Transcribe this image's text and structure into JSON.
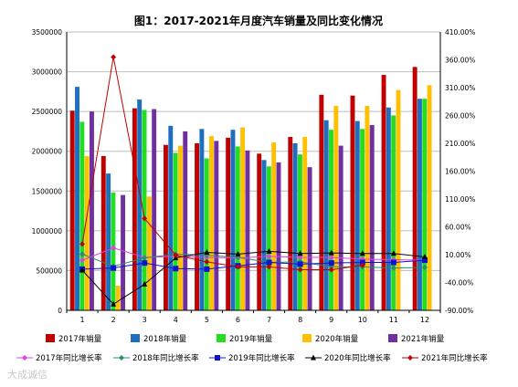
{
  "chart_data": {
    "type": "bar+line",
    "title": "图1：2017-2021年月度汽车销量及同比变化情况",
    "categories": [
      "1",
      "2",
      "3",
      "4",
      "5",
      "6",
      "7",
      "8",
      "9",
      "10",
      "11",
      "12"
    ],
    "left_axis": {
      "ylim": [
        0,
        3500000
      ],
      "ticks": [
        0,
        500000,
        1000000,
        1500000,
        2000000,
        2500000,
        3000000,
        3500000
      ]
    },
    "right_axis": {
      "ylim": [
        -90,
        410
      ],
      "ticks": [
        "-90.00%",
        "-40.00%",
        "10.00%",
        "60.00%",
        "110.00%",
        "160.00%",
        "210.00%",
        "260.00%",
        "310.00%",
        "360.00%",
        "410.00%"
      ]
    },
    "grid": true,
    "legend_position": "bottom",
    "bar_series": [
      {
        "name": "2017年销量",
        "color": "#c00000",
        "values": [
          2510000,
          1940000,
          2540000,
          2080000,
          2100000,
          2170000,
          1970000,
          2180000,
          2710000,
          2700000,
          2960000,
          3060000
        ]
      },
      {
        "name": "2018年销量",
        "color": "#1f6fbf",
        "values": [
          2810000,
          1720000,
          2650000,
          2320000,
          2280000,
          2270000,
          1890000,
          2100000,
          2390000,
          2380000,
          2550000,
          2660000
        ]
      },
      {
        "name": "2019年销量",
        "color": "#22dd22",
        "values": [
          2370000,
          1480000,
          2520000,
          1980000,
          1910000,
          2060000,
          1810000,
          1960000,
          2270000,
          2280000,
          2450000,
          2660000
        ]
      },
      {
        "name": "2020年销量",
        "color": "#ffc000",
        "values": [
          1940000,
          310000,
          1430000,
          2070000,
          2190000,
          2300000,
          2110000,
          2180000,
          2570000,
          2570000,
          2770000,
          2830000
        ]
      },
      {
        "name": "2021年销量",
        "color": "#7030a0",
        "values": [
          2500000,
          1450000,
          2530000,
          2250000,
          2130000,
          2010000,
          1860000,
          1800000,
          2070000,
          2330000,
          null,
          null
        ]
      }
    ],
    "line_series": [
      {
        "name": "2017年同比增长率",
        "color": "#e040e0",
        "marker": "diamond",
        "values": [
          0,
          22,
          5,
          7,
          5,
          4,
          7,
          5,
          5,
          2,
          1,
          0
        ]
      },
      {
        "name": "2018年同比增长率",
        "color": "#2e8b6e",
        "marker": "diamond",
        "values": [
          11,
          -11,
          4,
          11,
          9,
          5,
          -4,
          -3,
          -12,
          -12,
          -14,
          -13
        ]
      },
      {
        "name": "2019年同比增长率",
        "color": "#1010d0",
        "marker": "square",
        "values": [
          -16,
          -14,
          -5,
          -15,
          -16,
          -10,
          -4,
          -7,
          -5,
          -4,
          -4,
          0
        ]
      },
      {
        "name": "2020年同比增长率",
        "color": "#000000",
        "marker": "triangle",
        "values": [
          -18,
          -79,
          -43,
          4,
          14,
          11,
          16,
          12,
          13,
          12,
          12,
          6
        ]
      },
      {
        "name": "2021年同比增长率",
        "color": "#c00000",
        "marker": "diamond",
        "values": [
          29,
          365,
          75,
          9,
          -3,
          -12,
          -12,
          -17,
          -17,
          -9,
          null,
          null
        ]
      }
    ]
  },
  "watermark": "大成诚信"
}
